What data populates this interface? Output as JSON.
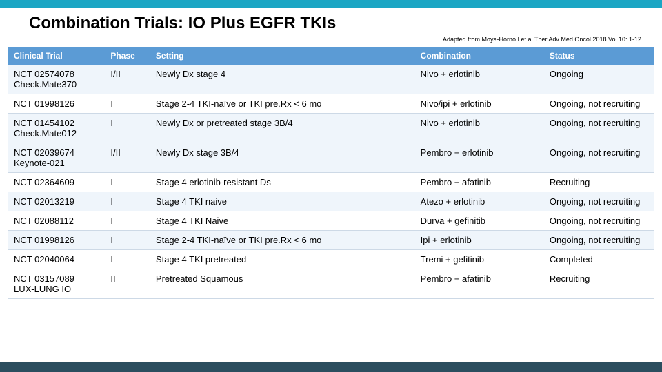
{
  "colors": {
    "top_bar": "#1ba6c4",
    "header_bg": "#5b9bd5",
    "band_light": "#eff5fb",
    "band_white": "#ffffff",
    "bottom_bar": "#2c4e5f",
    "text": "#000000",
    "header_text": "#ffffff"
  },
  "title": "Combination Trials: IO Plus EGFR TKIs",
  "citation": "Adapted from Moya-Horno I et al Ther Adv Med Oncol 2018 Vol 10: 1-12",
  "columns": [
    "Clinical Trial",
    "Phase",
    "Setting",
    "Combination",
    "Status"
  ],
  "rows": [
    {
      "trial_a": "NCT 02574078",
      "trial_b": "Check.Mate370",
      "phase": "I/II",
      "setting": "Newly Dx stage 4",
      "combo": "Nivo + erlotinib",
      "status": "Ongoing",
      "band": "band-light"
    },
    {
      "trial_a": "NCT 01998126",
      "trial_b": "",
      "phase": "I",
      "setting": "Stage 2-4 TKI-naïve or TKI pre.Rx < 6 mo",
      "combo": "Nivo/ipi + erlotinib",
      "status": "Ongoing, not recruiting",
      "band": "band-white"
    },
    {
      "trial_a": "NCT 01454102",
      "trial_b": "Check.Mate012",
      "phase": "I",
      "setting": "Newly Dx or pretreated stage 3B/4",
      "combo": "Nivo + erlotinib",
      "status": "Ongoing, not recruiting",
      "band": "band-light"
    },
    {
      "trial_a": "NCT 02039674",
      "trial_b": "Keynote-021",
      "phase": "I/II",
      "setting": "Newly Dx stage 3B/4",
      "combo": "Pembro + erlotinib",
      "status": "Ongoing, not recruiting",
      "band": "band-light"
    },
    {
      "trial_a": "NCT 02364609",
      "trial_b": "",
      "phase": "I",
      "setting": "Stage 4 erlotinib-resistant Ds",
      "combo": "Pembro + afatinib",
      "status": "Recruiting",
      "band": "band-white"
    },
    {
      "trial_a": "NCT 02013219",
      "trial_b": "",
      "phase": "I",
      "setting": "Stage 4 TKI naive",
      "combo": "Atezo + erlotinib",
      "status": "Ongoing, not recruiting",
      "band": "band-light"
    },
    {
      "trial_a": "NCT 02088112",
      "trial_b": "",
      "phase": "I",
      "setting": "Stage 4 TKI Naive",
      "combo": "Durva + gefinitib",
      "status": "Ongoing, not recruiting",
      "band": "band-white"
    },
    {
      "trial_a": "NCT 01998126",
      "trial_b": "",
      "phase": "I",
      "setting": "Stage 2-4 TKI-naïve or TKI pre.Rx < 6 mo",
      "combo": "Ipi + erlotinib",
      "status": "Ongoing, not recruiting",
      "band": "band-light"
    },
    {
      "trial_a": "NCT 02040064",
      "trial_b": "",
      "phase": "I",
      "setting": "Stage 4 TKI pretreated",
      "combo": "Tremi + gefitinib",
      "status": "Completed",
      "band": "band-white"
    },
    {
      "trial_a": "NCT 03157089",
      "trial_b": "LUX-LUNG IO",
      "phase": "II",
      "setting": "Pretreated Squamous",
      "combo": "Pembro + afatinib",
      "status": "Recruiting",
      "band": "band-white"
    }
  ]
}
